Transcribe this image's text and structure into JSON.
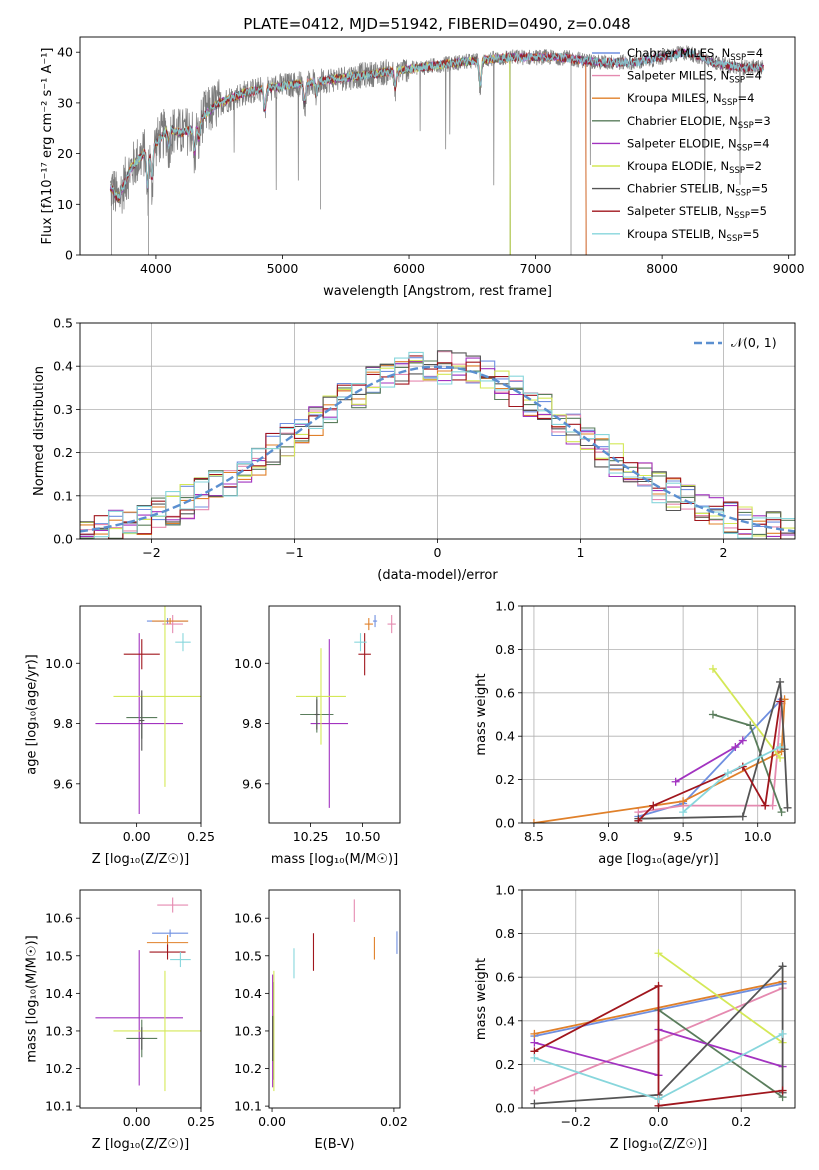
{
  "figure_title": "PLATE=0412, MJD=51942, FIBERID=0490, z=0.048",
  "colors": {
    "Chabrier MILES": "#6f8fe0",
    "Salpeter MILES": "#e58ab0",
    "Kroupa MILES": "#e0802a",
    "Chabrier ELODIE": "#5a7d5c",
    "Salpeter ELODIE": "#a233c0",
    "Kroupa ELODIE": "#d4e857",
    "Chabrier STELIB": "#555555",
    "Salpeter STELIB": "#a0161d",
    "Kroupa STELIB": "#87d6dc"
  },
  "chart_data": [
    {
      "id": "spectrum",
      "type": "line",
      "title": "",
      "xlabel": "wavelength [Angstrom, rest frame]",
      "ylabel": "Flux [fλ10⁻¹⁷ erg cm⁻² s⁻¹ A⁻¹]",
      "xlim": [
        3400,
        9050
      ],
      "ylim": [
        0,
        43
      ],
      "xticks": [
        4000,
        5000,
        6000,
        7000,
        8000,
        9000
      ],
      "yticks": [
        0,
        10,
        20,
        30,
        40
      ],
      "grid": false,
      "legend": "top-right",
      "legend_entries": [
        {
          "text": "Chabrier MILES, N",
          "sub": "SSP",
          "tail": "=4",
          "color": "#6f8fe0"
        },
        {
          "text": "Salpeter MILES, N",
          "sub": "SSP",
          "tail": "=4",
          "color": "#e58ab0"
        },
        {
          "text": "Kroupa MILES, N",
          "sub": "SSP",
          "tail": "=4",
          "color": "#e0802a"
        },
        {
          "text": "Chabrier ELODIE, N",
          "sub": "SSP",
          "tail": "=3",
          "color": "#5a7d5c"
        },
        {
          "text": "Salpeter ELODIE, N",
          "sub": "SSP",
          "tail": "=4",
          "color": "#a233c0"
        },
        {
          "text": "Kroupa ELODIE, N",
          "sub": "SSP",
          "tail": "=2",
          "color": "#d4e857"
        },
        {
          "text": "Chabrier STELIB, N",
          "sub": "SSP",
          "tail": "=5",
          "color": "#555555"
        },
        {
          "text": "Salpeter STELIB, N",
          "sub": "SSP",
          "tail": "=5",
          "color": "#a0161d"
        },
        {
          "text": "Kroupa STELIB, N",
          "sub": "SSP",
          "tail": "=5",
          "color": "#87d6dc"
        }
      ],
      "data_wave_range": [
        3640,
        8800
      ],
      "continuum": [
        [
          3640,
          14
        ],
        [
          3700,
          11
        ],
        [
          3800,
          17
        ],
        [
          3900,
          20
        ],
        [
          4000,
          22
        ],
        [
          4100,
          25
        ],
        [
          4200,
          24
        ],
        [
          4300,
          25
        ],
        [
          4400,
          28
        ],
        [
          4500,
          30
        ],
        [
          4700,
          32
        ],
        [
          4900,
          33
        ],
        [
          5200,
          34
        ],
        [
          5500,
          35
        ],
        [
          5800,
          36
        ],
        [
          6100,
          37
        ],
        [
          6400,
          38
        ],
        [
          6800,
          39
        ],
        [
          7200,
          39
        ],
        [
          7500,
          38
        ],
        [
          7800,
          38
        ],
        [
          8000,
          39
        ],
        [
          8200,
          40
        ],
        [
          8400,
          38
        ],
        [
          8600,
          37
        ],
        [
          8800,
          37
        ]
      ],
      "absorption_features": [
        [
          3640,
          1
        ],
        [
          3934,
          9
        ],
        [
          3968,
          8
        ],
        [
          4102,
          4
        ],
        [
          4305,
          6
        ],
        [
          4340,
          4
        ],
        [
          4861,
          5
        ],
        [
          5175,
          5
        ],
        [
          5270,
          3
        ],
        [
          5890,
          4
        ],
        [
          6563,
          6
        ]
      ],
      "model_drops": [
        {
          "series": "Kroupa ELODIE",
          "end_wave": 6800
        },
        {
          "series": "Chabrier MILES",
          "end_wave": 7400
        },
        {
          "series": "Salpeter MILES",
          "end_wave": 7400
        },
        {
          "series": "Kroupa MILES",
          "end_wave": 7400
        },
        {
          "series": "Chabrier ELODIE",
          "end_wave": 6800
        }
      ]
    },
    {
      "id": "residuals",
      "type": "bar",
      "title": "",
      "xlabel": "(data-model)/error",
      "ylabel": "Normed distribution",
      "xlim": [
        -2.5,
        2.5
      ],
      "ylim": [
        0,
        0.5
      ],
      "xticks": [
        -2,
        -1,
        0,
        1,
        2
      ],
      "xtick_labels": [
        "−2",
        "−1",
        "0",
        "1",
        "2"
      ],
      "yticks": [
        0.0,
        0.1,
        0.2,
        0.3,
        0.4,
        0.5
      ],
      "ytick_labels": [
        "0.0",
        "0.1",
        "0.2",
        "0.3",
        "0.4",
        "0.5"
      ],
      "grid": true,
      "legend": "top-right",
      "legend_label": "𝒩(0, 1)",
      "bin_width": 0.1,
      "reference_curve": "normal(0,1)",
      "histogram_seed_note": "steps around normal pdf"
    },
    {
      "id": "age_vs_Z",
      "type": "scatter",
      "title": "",
      "xlabel": "Z [log₁₀(Z/Z☉)]",
      "ylabel": "age  [log₁₀(age/yr)]",
      "xlim": [
        -0.22,
        0.25
      ],
      "ylim": [
        9.47,
        10.19
      ],
      "xticks": [
        0.0,
        0.25
      ],
      "xtick_labels": [
        "0.00",
        "0.25"
      ],
      "yticks": [
        9.6,
        9.8,
        10.0
      ],
      "ytick_labels": [
        "9.6",
        "9.8",
        "10.0"
      ],
      "grid": false,
      "points": [
        {
          "series": "Chabrier MILES",
          "x": 0.12,
          "y": 10.14,
          "xerr": 0.08,
          "yerr": 0.01
        },
        {
          "series": "Salpeter MILES",
          "x": 0.14,
          "y": 10.13,
          "xerr": 0.04,
          "yerr": 0.03
        },
        {
          "series": "Kroupa MILES",
          "x": 0.13,
          "y": 10.14,
          "xerr": 0.07,
          "yerr": 0.01
        },
        {
          "series": "Chabrier ELODIE",
          "x": 0.02,
          "y": 9.82,
          "xerr": 0.06,
          "yerr": 0.07
        },
        {
          "series": "Salpeter ELODIE",
          "x": 0.01,
          "y": 9.8,
          "xerr": 0.17,
          "yerr": 0.3
        },
        {
          "series": "Kroupa ELODIE",
          "x": 0.11,
          "y": 9.89,
          "xerr": 0.2,
          "yerr": 0.3
        },
        {
          "series": "Chabrier STELIB",
          "x": 0.02,
          "y": 9.81,
          "xerr": 0.01,
          "yerr": 0.1
        },
        {
          "series": "Salpeter STELIB",
          "x": 0.02,
          "y": 10.03,
          "xerr": 0.07,
          "yerr": 0.05
        },
        {
          "series": "Kroupa STELIB",
          "x": 0.18,
          "y": 10.07,
          "xerr": 0.03,
          "yerr": 0.03
        }
      ]
    },
    {
      "id": "age_vs_mass",
      "type": "scatter",
      "title": "",
      "xlabel": "mass [log₁₀(M/M☉)]",
      "ylabel": "",
      "xlim": [
        10.05,
        10.68
      ],
      "ylim": [
        9.47,
        10.19
      ],
      "xticks": [
        10.25,
        10.5
      ],
      "xtick_labels": [
        "10.25",
        "10.50"
      ],
      "yticks": [
        9.6,
        9.8,
        10.0
      ],
      "ytick_labels": [
        "9.6",
        "9.8",
        "10.0"
      ],
      "grid": false,
      "points": [
        {
          "series": "Chabrier MILES",
          "x": 10.56,
          "y": 10.14,
          "xerr": 0.01,
          "yerr": 0.02
        },
        {
          "series": "Salpeter MILES",
          "x": 10.64,
          "y": 10.13,
          "xerr": 0.02,
          "yerr": 0.03
        },
        {
          "series": "Kroupa MILES",
          "x": 10.53,
          "y": 10.13,
          "xerr": 0.02,
          "yerr": 0.02
        },
        {
          "series": "Chabrier ELODIE",
          "x": 10.28,
          "y": 9.83,
          "xerr": 0.08,
          "yerr": 0.06
        },
        {
          "series": "Salpeter ELODIE",
          "x": 10.34,
          "y": 9.8,
          "xerr": 0.09,
          "yerr": 0.28
        },
        {
          "series": "Kroupa ELODIE",
          "x": 10.3,
          "y": 9.89,
          "xerr": 0.12,
          "yerr": 0.16
        },
        {
          "series": "Chabrier STELIB",
          "x": 10.28,
          "y": 9.83,
          "xerr": 0.01,
          "yerr": 0.05
        },
        {
          "series": "Salpeter STELIB",
          "x": 10.51,
          "y": 10.03,
          "xerr": 0.03,
          "yerr": 0.07
        },
        {
          "series": "Kroupa STELIB",
          "x": 10.49,
          "y": 10.07,
          "xerr": 0.03,
          "yerr": 0.03
        }
      ]
    },
    {
      "id": "weight_vs_age",
      "type": "line",
      "title": "",
      "xlabel": "age  [log₁₀(age/yr)]",
      "ylabel": "mass weight",
      "xlim": [
        8.42,
        10.25
      ],
      "ylim": [
        0,
        1
      ],
      "xticks": [
        8.5,
        9.0,
        9.5,
        10.0
      ],
      "xtick_labels": [
        "8.5",
        "9.0",
        "9.5",
        "10.0"
      ],
      "yticks": [
        0,
        0.2,
        0.4,
        0.6,
        0.8,
        1.0
      ],
      "ytick_labels": [
        "0.0",
        "0.2",
        "0.4",
        "0.6",
        "0.8",
        "1.0"
      ],
      "grid": true,
      "series": [
        {
          "name": "Chabrier MILES",
          "x": [
            9.2,
            9.5,
            10.16
          ],
          "y": [
            0.03,
            0.09,
            0.57
          ]
        },
        {
          "name": "Salpeter MILES",
          "x": [
            9.2,
            9.5,
            10.1,
            10.16
          ],
          "y": [
            0.05,
            0.08,
            0.08,
            0.55
          ]
        },
        {
          "name": "Kroupa MILES",
          "x": [
            8.5,
            9.5,
            10.16,
            10.18
          ],
          "y": [
            0.0,
            0.1,
            0.33,
            0.57
          ]
        },
        {
          "name": "Chabrier ELODIE",
          "x": [
            9.7,
            9.95,
            10.16
          ],
          "y": [
            0.5,
            0.45,
            0.05
          ]
        },
        {
          "name": "Salpeter ELODIE",
          "x": [
            9.45,
            9.85,
            9.9
          ],
          "y": [
            0.19,
            0.35,
            0.38
          ]
        },
        {
          "name": "Kroupa ELODIE",
          "x": [
            9.7,
            10.15
          ],
          "y": [
            0.71,
            0.3
          ]
        },
        {
          "name": "Chabrier STELIB",
          "x": [
            9.2,
            9.9,
            10.15,
            10.18,
            10.2
          ],
          "y": [
            0.02,
            0.03,
            0.65,
            0.34,
            0.07
          ]
        },
        {
          "name": "Salpeter STELIB",
          "x": [
            9.2,
            9.3,
            9.9,
            10.05,
            10.15
          ],
          "y": [
            0.01,
            0.08,
            0.26,
            0.08,
            0.56
          ]
        },
        {
          "name": "Kroupa STELIB",
          "x": [
            9.5,
            9.8,
            10.15
          ],
          "y": [
            0.05,
            0.23,
            0.35
          ]
        }
      ]
    },
    {
      "id": "mass_vs_Z",
      "type": "scatter",
      "title": "",
      "xlabel": "Z [log₁₀(Z/Z☉)]",
      "ylabel": "mass [log₁₀(M/M☉)]",
      "xlim": [
        -0.22,
        0.25
      ],
      "ylim": [
        10.095,
        10.675
      ],
      "xticks": [
        0.0,
        0.25
      ],
      "xtick_labels": [
        "0.00",
        "0.25"
      ],
      "yticks": [
        10.1,
        10.2,
        10.3,
        10.4,
        10.5,
        10.6
      ],
      "ytick_labels": [
        "10.1",
        "10.2",
        "10.3",
        "10.4",
        "10.5",
        "10.6"
      ],
      "grid": false,
      "points": [
        {
          "series": "Chabrier MILES",
          "x": 0.13,
          "y": 10.56,
          "xerr": 0.07,
          "yerr": 0.01
        },
        {
          "series": "Salpeter MILES",
          "x": 0.14,
          "y": 10.635,
          "xerr": 0.06,
          "yerr": 0.02
        },
        {
          "series": "Kroupa MILES",
          "x": 0.12,
          "y": 10.535,
          "xerr": 0.08,
          "yerr": 0.02
        },
        {
          "series": "Chabrier ELODIE",
          "x": 0.02,
          "y": 10.28,
          "xerr": 0.06,
          "yerr": 0.05
        },
        {
          "series": "Salpeter ELODIE",
          "x": 0.01,
          "y": 10.335,
          "xerr": 0.17,
          "yerr": 0.18
        },
        {
          "series": "Kroupa ELODIE",
          "x": 0.11,
          "y": 10.3,
          "xerr": 0.2,
          "yerr": 0.16
        },
        {
          "series": "Chabrier STELIB",
          "x": 0.02,
          "y": 10.28,
          "xerr": 0.01,
          "yerr": 0.03
        },
        {
          "series": "Salpeter STELIB",
          "x": 0.12,
          "y": 10.51,
          "xerr": 0.07,
          "yerr": 0.02
        },
        {
          "series": "Kroupa STELIB",
          "x": 0.17,
          "y": 10.49,
          "xerr": 0.04,
          "yerr": 0.02
        }
      ]
    },
    {
      "id": "mass_vs_ebv",
      "type": "scatter",
      "title": "",
      "xlabel": "E(B-V)",
      "ylabel": "",
      "xlim": [
        -0.0005,
        0.021
      ],
      "ylim": [
        10.095,
        10.675
      ],
      "xticks": [
        0.0,
        0.02
      ],
      "xtick_labels": [
        "0.00",
        "0.02"
      ],
      "yticks": [
        10.1,
        10.2,
        10.3,
        10.4,
        10.5,
        10.6
      ],
      "ytick_labels": [
        "10.1",
        "10.2",
        "10.3",
        "10.4",
        "10.5",
        "10.6"
      ],
      "grid": false,
      "points": [
        {
          "series": "Chabrier MILES",
          "x": 0.0205,
          "y": 10.535,
          "xerr": 0,
          "yerr": 0.03
        },
        {
          "series": "Salpeter MILES",
          "x": 0.0135,
          "y": 10.62,
          "xerr": 0,
          "yerr": 0.03
        },
        {
          "series": "Kroupa MILES",
          "x": 0.0168,
          "y": 10.52,
          "xerr": 0,
          "yerr": 0.03
        },
        {
          "series": "Chabrier ELODIE",
          "x": 0.0002,
          "y": 10.3,
          "xerr": 0,
          "yerr": 0.13
        },
        {
          "series": "Salpeter ELODIE",
          "x": 0.0001,
          "y": 10.3,
          "xerr": 0,
          "yerr": 0.15
        },
        {
          "series": "Kroupa ELODIE",
          "x": 0.0003,
          "y": 10.3,
          "xerr": 0,
          "yerr": 0.16
        },
        {
          "series": "Chabrier STELIB",
          "x": 0.0001,
          "y": 10.28,
          "xerr": 0,
          "yerr": 0.06
        },
        {
          "series": "Salpeter STELIB",
          "x": 0.0068,
          "y": 10.51,
          "xerr": 0,
          "yerr": 0.05
        },
        {
          "series": "Kroupa STELIB",
          "x": 0.0036,
          "y": 10.48,
          "xerr": 0,
          "yerr": 0.04
        }
      ]
    },
    {
      "id": "weight_vs_Z",
      "type": "line",
      "title": "",
      "xlabel": "Z [log₁₀(Z/Z☉)]",
      "ylabel": "mass weight",
      "xlim": [
        -0.33,
        0.33
      ],
      "ylim": [
        0,
        1
      ],
      "xticks": [
        -0.2,
        0.0,
        0.2
      ],
      "xtick_labels": [
        "−0.2",
        "0.0",
        "0.2"
      ],
      "yticks": [
        0,
        0.2,
        0.4,
        0.6,
        0.8,
        1.0
      ],
      "ytick_labels": [
        "0.0",
        "0.2",
        "0.4",
        "0.6",
        "0.8",
        "1.0"
      ],
      "grid": true,
      "series": [
        {
          "name": "Chabrier MILES",
          "x": [
            -0.3,
            0.3
          ],
          "y": [
            0.33,
            0.57
          ]
        },
        {
          "name": "Salpeter MILES",
          "x": [
            -0.3,
            0.0,
            0.3
          ],
          "y": [
            0.08,
            0.31,
            0.55
          ]
        },
        {
          "name": "Kroupa MILES",
          "x": [
            -0.3,
            0.3
          ],
          "y": [
            0.34,
            0.58
          ]
        },
        {
          "name": "Chabrier ELODIE",
          "x": [
            0.0,
            0.3
          ],
          "y": [
            0.45,
            0.05
          ]
        },
        {
          "name": "Salpeter ELODIE",
          "x": [
            -0.3,
            0.0,
            0.0,
            0.3
          ],
          "y": [
            0.3,
            0.15,
            0.36,
            0.19
          ]
        },
        {
          "name": "Kroupa ELODIE",
          "x": [
            0.0,
            0.3
          ],
          "y": [
            0.71,
            0.3
          ]
        },
        {
          "name": "Chabrier STELIB",
          "x": [
            -0.3,
            0.0,
            0.3,
            0.3
          ],
          "y": [
            0.02,
            0.06,
            0.65,
            0.07
          ]
        },
        {
          "name": "Salpeter STELIB",
          "x": [
            -0.3,
            0.0,
            0.0,
            0.3
          ],
          "y": [
            0.26,
            0.56,
            0.01,
            0.08
          ]
        },
        {
          "name": "Kroupa STELIB",
          "x": [
            -0.3,
            0.0,
            0.3
          ],
          "y": [
            0.23,
            0.04,
            0.34
          ]
        }
      ]
    }
  ]
}
